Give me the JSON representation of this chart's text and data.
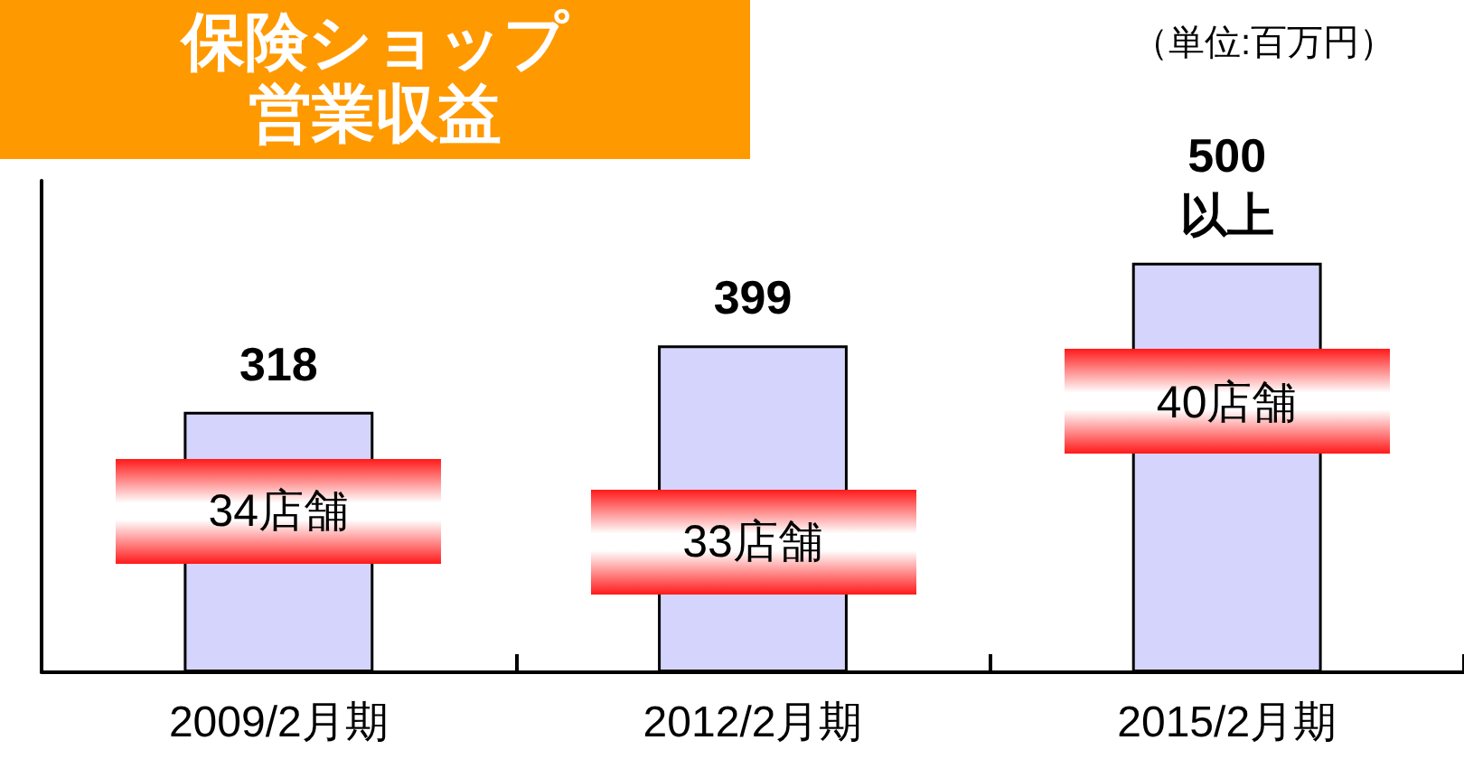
{
  "chart_data": {
    "type": "bar",
    "title": "保険ショップ営業収益",
    "subtitle": "（単位:百万円）",
    "categories": [
      "2009/2月期",
      "2012/2月期",
      "2015/2月期"
    ],
    "values": [
      318,
      399,
      500
    ],
    "value_labels": [
      "318",
      "399",
      "500\n以上"
    ],
    "color": "#d4d4fc",
    "annotations": [
      "34店舗",
      "33店舗",
      "40店舗"
    ],
    "tick_labels": "x",
    "grid": false
  }
}
